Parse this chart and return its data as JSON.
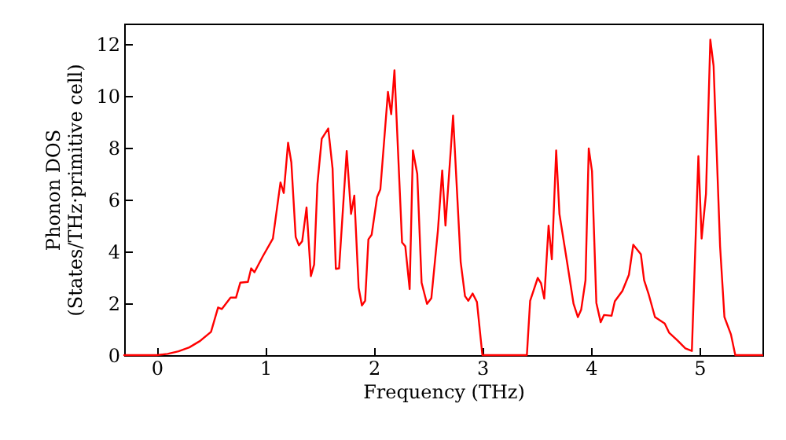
{
  "chart_data": {
    "type": "line",
    "xlabel": "Frequency (THz)",
    "ylabel": "Phonon DOS\n(States/THz·primitive cell)",
    "x": [
      -0.3,
      0,
      0.1,
      0.2,
      0.3,
      0.4,
      0.5,
      0.565,
      0.6,
      0.68,
      0.73,
      0.77,
      0.84,
      0.87,
      0.9,
      0.975,
      1.07,
      1.14,
      1.17,
      1.21,
      1.24,
      1.28,
      1.31,
      1.34,
      1.38,
      1.42,
      1.45,
      1.48,
      1.52,
      1.58,
      1.62,
      1.65,
      1.68,
      1.75,
      1.79,
      1.82,
      1.86,
      1.89,
      1.92,
      1.95,
      1.98,
      2.03,
      2.06,
      2.13,
      2.16,
      2.19,
      2.26,
      2.29,
      2.33,
      2.36,
      2.4,
      2.44,
      2.49,
      2.53,
      2.59,
      2.63,
      2.66,
      2.71,
      2.73,
      2.8,
      2.84,
      2.87,
      2.91,
      2.95,
      3.0,
      3.41,
      3.44,
      3.51,
      3.54,
      3.57,
      3.61,
      3.64,
      3.68,
      3.71,
      3.78,
      3.84,
      3.88,
      3.91,
      3.95,
      3.98,
      4.01,
      4.05,
      4.09,
      4.12,
      4.19,
      4.22,
      4.29,
      4.35,
      4.39,
      4.46,
      4.49,
      4.53,
      4.59,
      4.68,
      4.72,
      4.8,
      4.87,
      4.93,
      4.99,
      5.02,
      5.06,
      5.1,
      5.13,
      5.19,
      5.23,
      5.29,
      5.33,
      5.58
    ],
    "series": [
      {
        "color": "#ff0000",
        "values": [
          0,
          0,
          0.05,
          0.15,
          0.3,
          0.55,
          0.9,
          1.84,
          1.78,
          2.22,
          2.22,
          2.8,
          2.83,
          3.35,
          3.2,
          3.8,
          4.5,
          6.67,
          6.26,
          8.2,
          7.44,
          4.56,
          4.24,
          4.4,
          5.7,
          3.05,
          3.5,
          6.6,
          8.35,
          8.75,
          7.2,
          3.33,
          3.35,
          7.88,
          5.45,
          6.16,
          2.6,
          1.92,
          2.1,
          4.47,
          4.65,
          6.1,
          6.4,
          10.16,
          9.3,
          11.0,
          4.35,
          4.2,
          2.55,
          7.9,
          7.0,
          2.8,
          1.98,
          2.2,
          4.8,
          7.13,
          5.0,
          8.0,
          9.25,
          3.6,
          2.28,
          2.1,
          2.38,
          2.05,
          0,
          0,
          2.1,
          2.98,
          2.78,
          2.18,
          5.0,
          3.7,
          7.9,
          5.45,
          3.6,
          1.98,
          1.47,
          1.75,
          2.89,
          7.98,
          7.1,
          2.02,
          1.27,
          1.55,
          1.52,
          2.08,
          2.48,
          3.1,
          4.26,
          3.9,
          2.89,
          2.38,
          1.47,
          1.22,
          0.87,
          0.56,
          0.26,
          0.16,
          7.68,
          4.5,
          6.22,
          12.18,
          11.17,
          4.2,
          1.47,
          0.8,
          0,
          0
        ]
      }
    ],
    "xlim": [
      -0.3,
      5.58
    ],
    "xticks": [
      0,
      1,
      2,
      3,
      4,
      5
    ],
    "ylim": [
      0,
      12.8
    ],
    "yticks": [
      0,
      2,
      4,
      6,
      8,
      10,
      12
    ],
    "grid": false,
    "marker": "none",
    "line_style": "solid"
  }
}
